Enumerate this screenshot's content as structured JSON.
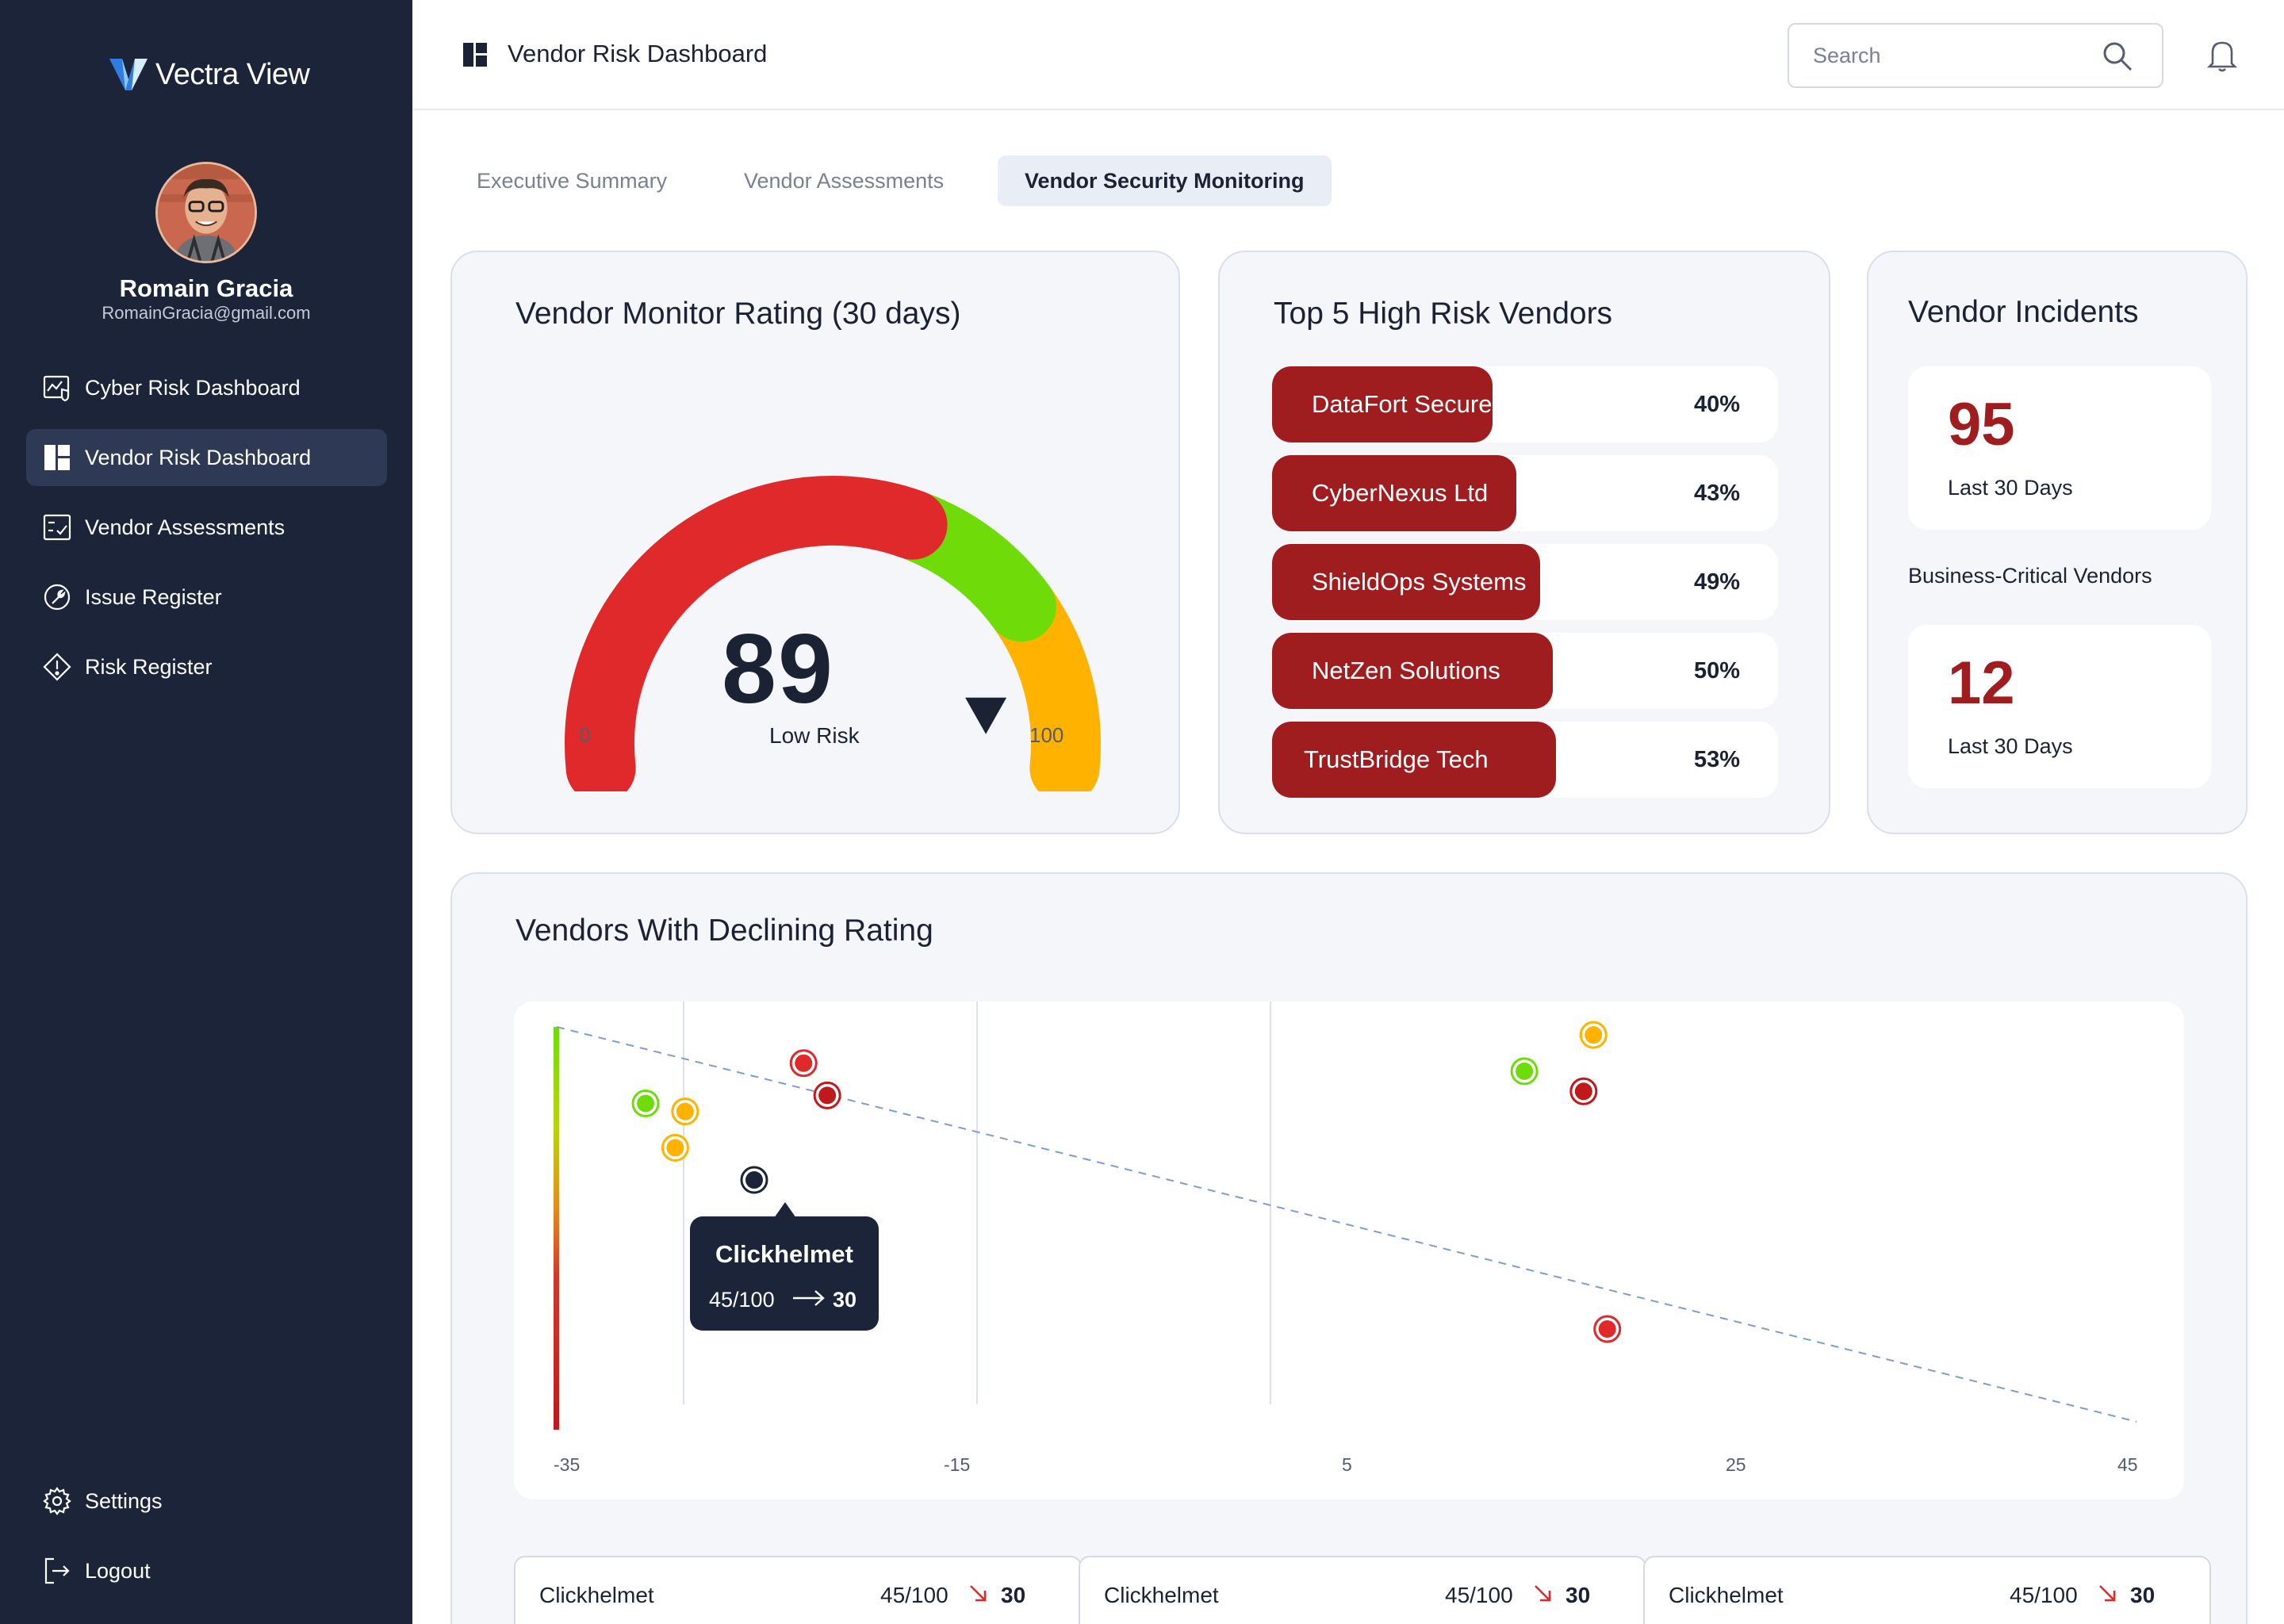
{
  "app": {
    "name": "Vectra View"
  },
  "user": {
    "name": "Romain Gracia",
    "email": "RomainGracia@gmail.com"
  },
  "sidebar": {
    "items": [
      {
        "label": "Cyber Risk Dashboard",
        "icon": "shield-chart-icon"
      },
      {
        "label": "Vendor Risk Dashboard",
        "icon": "dashboard-grid-icon",
        "active": true
      },
      {
        "label": "Vendor Assessments",
        "icon": "checklist-icon"
      },
      {
        "label": "Issue Register",
        "icon": "wrench-icon"
      },
      {
        "label": "Risk Register",
        "icon": "warning-diamond-icon"
      }
    ],
    "bottom": [
      {
        "label": "Settings",
        "icon": "gear-icon"
      },
      {
        "label": "Logout",
        "icon": "logout-icon"
      }
    ]
  },
  "header": {
    "title": "Vendor Risk Dashboard",
    "search_placeholder": "Search"
  },
  "tabs": [
    {
      "label": "Executive Summary"
    },
    {
      "label": "Vendor Assessments"
    },
    {
      "label": "Vendor Security Monitoring",
      "active": true
    }
  ],
  "monitor": {
    "title": "Vendor Monitor Rating (30 days)",
    "value": "89",
    "label": "Low Risk",
    "min": "0",
    "max": "100",
    "needle_value": 89,
    "colors": {
      "high": "#e0292a",
      "medium": "#6fdc0a",
      "low": "#ffb300"
    }
  },
  "top_vendors": {
    "title": "Top 5 High Risk Vendors",
    "items": [
      {
        "name": "DataFort Secure",
        "pct": "40%",
        "value": 40
      },
      {
        "name": "CyberNexus Ltd",
        "pct": "43%",
        "value": 43
      },
      {
        "name": "ShieldOps Systems",
        "pct": "49%",
        "value": 49
      },
      {
        "name": "NetZen Solutions",
        "pct": "50%",
        "value": 50
      },
      {
        "name": "TrustBridge Tech",
        "pct": "53%",
        "value": 53
      }
    ]
  },
  "incidents": {
    "title": "Vendor Incidents",
    "total": "95",
    "total_sub": "Last 30 Days",
    "mid_label": "Business-Critical Vendors",
    "critical": "12",
    "critical_sub": "Last 30 Days"
  },
  "declining": {
    "title": "Vendors With Declining Rating",
    "tooltip": {
      "name": "Clickhelmet",
      "from": "45/100",
      "to": "30"
    },
    "cards": [
      {
        "name": "Clickhelmet",
        "from": "45/100",
        "to": "30"
      },
      {
        "name": "Clickhelmet",
        "from": "45/100",
        "to": "30"
      },
      {
        "name": "Clickhelmet",
        "from": "45/100",
        "to": "30"
      }
    ]
  },
  "chart_data": {
    "type": "scatter",
    "xlim": [
      -35,
      45
    ],
    "ylim": [
      0,
      100
    ],
    "x_ticks": [
      "-35",
      "-15",
      "5",
      "25",
      "45"
    ],
    "trendline": {
      "x": [
        -35,
        45
      ],
      "y": [
        100,
        2
      ]
    },
    "points": [
      {
        "x": -30.5,
        "y": 81,
        "status": "green"
      },
      {
        "x": -28.5,
        "y": 79,
        "status": "yellow"
      },
      {
        "x": -29,
        "y": 70,
        "status": "yellow"
      },
      {
        "x": -25,
        "y": 62,
        "status": "selected"
      },
      {
        "x": -22.5,
        "y": 91,
        "status": "red"
      },
      {
        "x": -21.3,
        "y": 83,
        "status": "darkred"
      },
      {
        "x": 14,
        "y": 89,
        "status": "green"
      },
      {
        "x": 17.5,
        "y": 98,
        "status": "yellow"
      },
      {
        "x": 17,
        "y": 84,
        "status": "darkred"
      },
      {
        "x": 18.2,
        "y": 25,
        "status": "red"
      }
    ],
    "status_colors": {
      "green": "#6fdc0a",
      "yellow": "#ffb300",
      "red": "#e0292a",
      "darkred": "#c0191c",
      "selected": "#1b2439"
    },
    "grid": true
  }
}
